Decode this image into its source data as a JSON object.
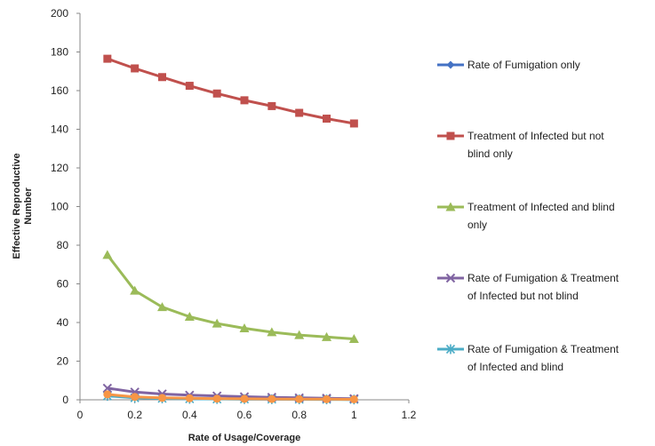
{
  "chart_data": {
    "type": "line",
    "title": "",
    "xlabel": "Rate of Usage/Coverage",
    "ylabel": [
      "Effective Reproductive",
      "Number"
    ],
    "xlim": [
      0,
      1.2
    ],
    "ylim": [
      0,
      200
    ],
    "xticks": [
      "0",
      "0.2",
      "0.4",
      "0.6",
      "0.8",
      "1",
      "1.2"
    ],
    "yticks": [
      "0",
      "20",
      "40",
      "60",
      "80",
      "100",
      "120",
      "140",
      "160",
      "180",
      "200"
    ],
    "grid": false,
    "legend_position": "right",
    "x": [
      0.1,
      0.2,
      0.3,
      0.4,
      0.5,
      0.6,
      0.7,
      0.8,
      0.9,
      1.0
    ],
    "series": [
      {
        "name": [
          "Rate of Fumigation only"
        ],
        "color": "#4472c4",
        "marker": "diamond",
        "values": [
          2.5,
          1.3,
          0.9,
          0.6,
          0.5,
          0.4,
          0.35,
          0.3,
          0.25,
          0.2
        ]
      },
      {
        "name": [
          "Treatment of Infected but not",
          "blind only"
        ],
        "color": "#c0504d",
        "marker": "square",
        "values": [
          176.5,
          171.5,
          167,
          162.5,
          158.5,
          155,
          152,
          148.5,
          145.5,
          143
        ]
      },
      {
        "name": [
          "Treatment of Infected and blind",
          "only"
        ],
        "color": "#9bbb59",
        "marker": "triangle",
        "values": [
          75,
          56.5,
          48,
          43,
          39.5,
          37,
          35,
          33.5,
          32.5,
          31.5
        ]
      },
      {
        "name": [
          "Rate of Fumigation & Treatment",
          "of Infected but not blind"
        ],
        "color": "#8064a2",
        "marker": "x",
        "values": [
          6,
          4,
          3,
          2.4,
          2,
          1.6,
          1.3,
          1,
          0.8,
          0.6
        ]
      },
      {
        "name": [
          "Rate of Fumigation & Treatment",
          "of Infected and blind"
        ],
        "color": "#4bacc6",
        "marker": "star",
        "values": [
          2,
          1,
          0.7,
          0.5,
          0.4,
          0.35,
          0.3,
          0.25,
          0.2,
          0.15
        ]
      },
      {
        "name": [],
        "color": "#f79646",
        "marker": "circle",
        "values": [
          2.8,
          1.5,
          1,
          0.8,
          0.6,
          0.5,
          0.4,
          0.35,
          0.3,
          0.25
        ]
      }
    ]
  }
}
